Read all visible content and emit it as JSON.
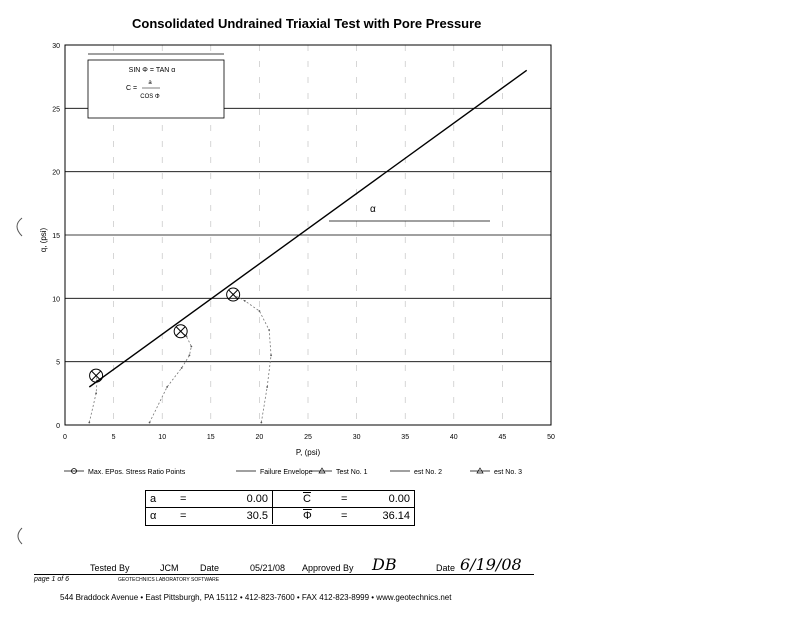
{
  "document": {
    "title": "Consolidated Undrained Triaxial Test with Pore Pressure",
    "inset_formula": {
      "line1": "SIN Φ = TAN α",
      "line2_num": "a",
      "line2_left": "C =",
      "line2_den": "COS Φ"
    },
    "alpha_marker": "α",
    "legend": [
      {
        "label": "Max. EPos. Stress Ratio Points",
        "symbol": "circle-x"
      },
      {
        "label": "Failure Envelope",
        "symbol": "line"
      },
      {
        "label": "Test No. 1",
        "symbol": "triangle"
      },
      {
        "label": "est No. 2",
        "symbol": "line"
      },
      {
        "label": "est No. 3",
        "symbol": "triangle"
      }
    ],
    "parameters": [
      {
        "sym1": "a",
        "eq1": "=",
        "val1": "0.00",
        "sym2": "C",
        "eq2": "=",
        "val2": "0.00"
      },
      {
        "sym1": "α",
        "eq1": "=",
        "val1": "30.5",
        "sym2": "Φ",
        "eq2": "=",
        "val2": "36.14"
      }
    ],
    "footer": {
      "tested_by_label": "Tested By",
      "tested_by": "JCM",
      "date_label": "Date",
      "date": "05/21/08",
      "approved_by_label": "Approved By",
      "approved_by": "DB",
      "date2_label": "Date",
      "date2": "6/19/08",
      "page": "page 1 of 6",
      "software_note": "GEOTECHNICS LABORATORY SOFTWARE",
      "address": "544 Braddock Avenue  •  East Pittsburgh, PA 15112  •  412-823-7600  •  FAX 412-823-8999  •  www.geotechnics.net"
    }
  },
  "chart_data": {
    "type": "scatter",
    "xlabel": "P, (psi)",
    "ylabel": "q, (psi)",
    "xlim": [
      0,
      50
    ],
    "ylim": [
      0,
      30
    ],
    "xticks": [
      0,
      5,
      10,
      15,
      20,
      25,
      30,
      35,
      40,
      45,
      50
    ],
    "yticks": [
      0,
      5,
      10,
      15,
      20,
      25,
      30
    ],
    "grid": "horizontal",
    "failure_envelope": {
      "name": "Failure Envelope",
      "x": [
        2.5,
        47.5
      ],
      "y": [
        3.0,
        28.0
      ]
    },
    "max_stress_ratio_points": [
      {
        "x": 3.2,
        "y": 3.9
      },
      {
        "x": 11.9,
        "y": 7.4
      },
      {
        "x": 17.3,
        "y": 10.3
      }
    ],
    "series": [
      {
        "name": "Test No. 1",
        "x": [
          2.5,
          3.2,
          3.3,
          3.2
        ],
        "y": [
          0.2,
          2.5,
          3.5,
          3.9
        ]
      },
      {
        "name": "est No. 2",
        "x": [
          8.7,
          10.5,
          12.0,
          12.8,
          13.0,
          12.5,
          11.9
        ],
        "y": [
          0.2,
          3.0,
          4.5,
          5.5,
          6.2,
          7.0,
          7.4
        ]
      },
      {
        "name": "est No. 3",
        "x": [
          20.2,
          20.8,
          21.2,
          21.0,
          20.0,
          18.5,
          17.3
        ],
        "y": [
          0.2,
          3.0,
          5.5,
          7.5,
          9.0,
          9.8,
          10.3
        ]
      }
    ]
  }
}
